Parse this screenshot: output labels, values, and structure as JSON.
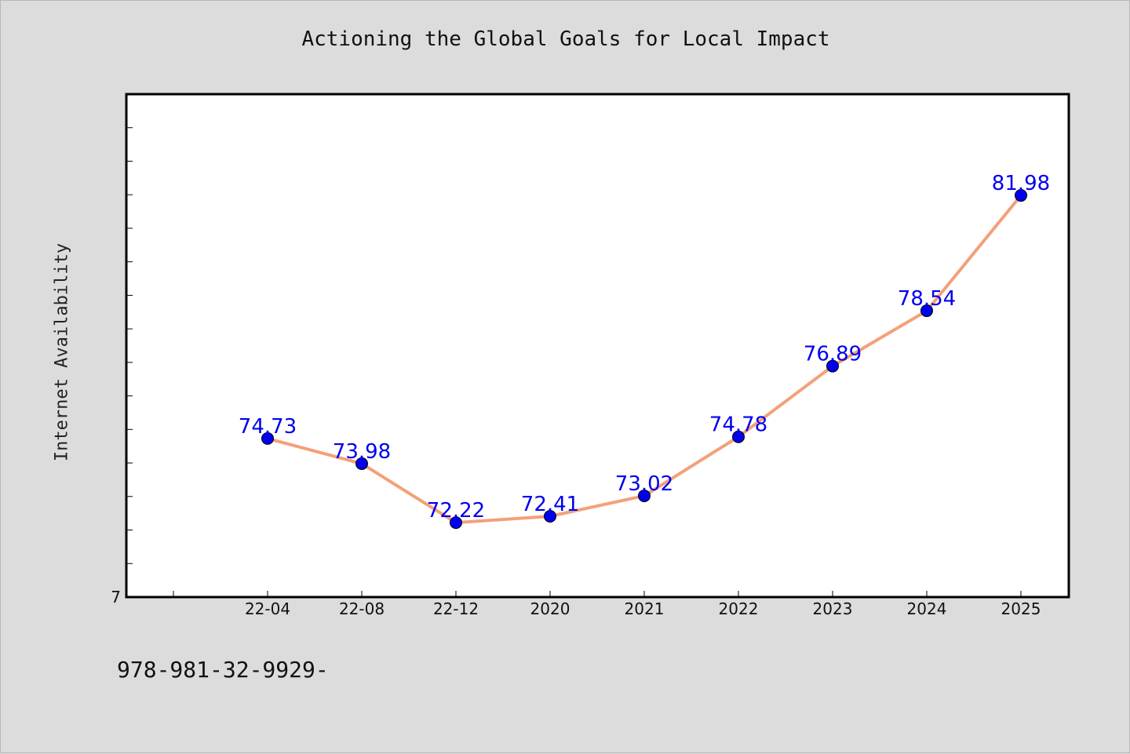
{
  "chart_data": {
    "type": "line",
    "title": "Actioning the Global Goals for Local Impact",
    "ylabel": "Internet Availability",
    "xlabel": "",
    "categories": [
      "22-04",
      "22-08",
      "22-12",
      "2020",
      "2021",
      "2022",
      "2023",
      "2024",
      "2025"
    ],
    "series": [
      {
        "values": [
          74.73,
          73.98,
          72.22,
          72.41,
          73.02,
          74.78,
          76.89,
          78.54,
          81.98
        ]
      }
    ],
    "data_labels": [
      "74.73",
      "73.98",
      "72.22",
      "72.41",
      "73.02",
      "74.78",
      "76.89",
      "78.54",
      "81.98"
    ],
    "y_tick_label": "7",
    "ylim": [
      70,
      85
    ],
    "y_minor_step": 1,
    "grid": false,
    "legend": "none",
    "line_color": "#f4a07a",
    "marker_color": "#0000ee",
    "label_color": "#0000ee"
  },
  "footer_text": "978-981-32-9929-"
}
